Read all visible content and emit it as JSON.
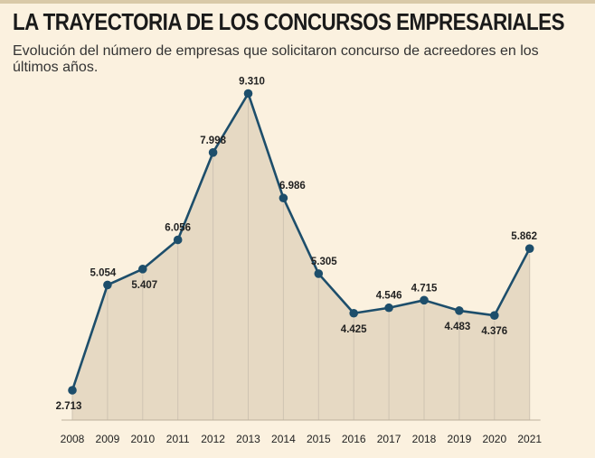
{
  "title": "LA TRAYECTORIA DE LOS CONCURSOS EMPRESARIALES",
  "subtitle": "Evolución del número de empresas que solicitaron concurso de acreedores en los últimos años.",
  "colors": {
    "background": "#fbf1df",
    "area": "#e6d9c3",
    "line": "#1d4e6b",
    "grid": "#cfc4b2"
  },
  "chart_data": {
    "type": "area",
    "title": "LA TRAYECTORIA DE LOS CONCURSOS EMPRESARIALES",
    "subtitle": "Evolución del número de empresas que solicitaron concurso de acreedores en los últimos años.",
    "xlabel": "",
    "ylabel": "",
    "x": [
      "2008",
      "2009",
      "2010",
      "2011",
      "2012",
      "2013",
      "2014",
      "2015",
      "2016",
      "2017",
      "2018",
      "2019",
      "2020",
      "2021"
    ],
    "values": [
      2713,
      5054,
      5407,
      6056,
      7998,
      9310,
      6986,
      5305,
      4425,
      4546,
      4715,
      4483,
      4376,
      5862
    ],
    "data_labels": [
      "2.713",
      "5.054",
      "5.407",
      "6.056",
      "7.998",
      "9.310",
      "6.986",
      "5.305",
      "4.425",
      "4.546",
      "4.715",
      "4.483",
      "4.376",
      "5.862"
    ],
    "ylim": [
      2000,
      9600
    ],
    "grid": "vertical",
    "legend": "none"
  }
}
